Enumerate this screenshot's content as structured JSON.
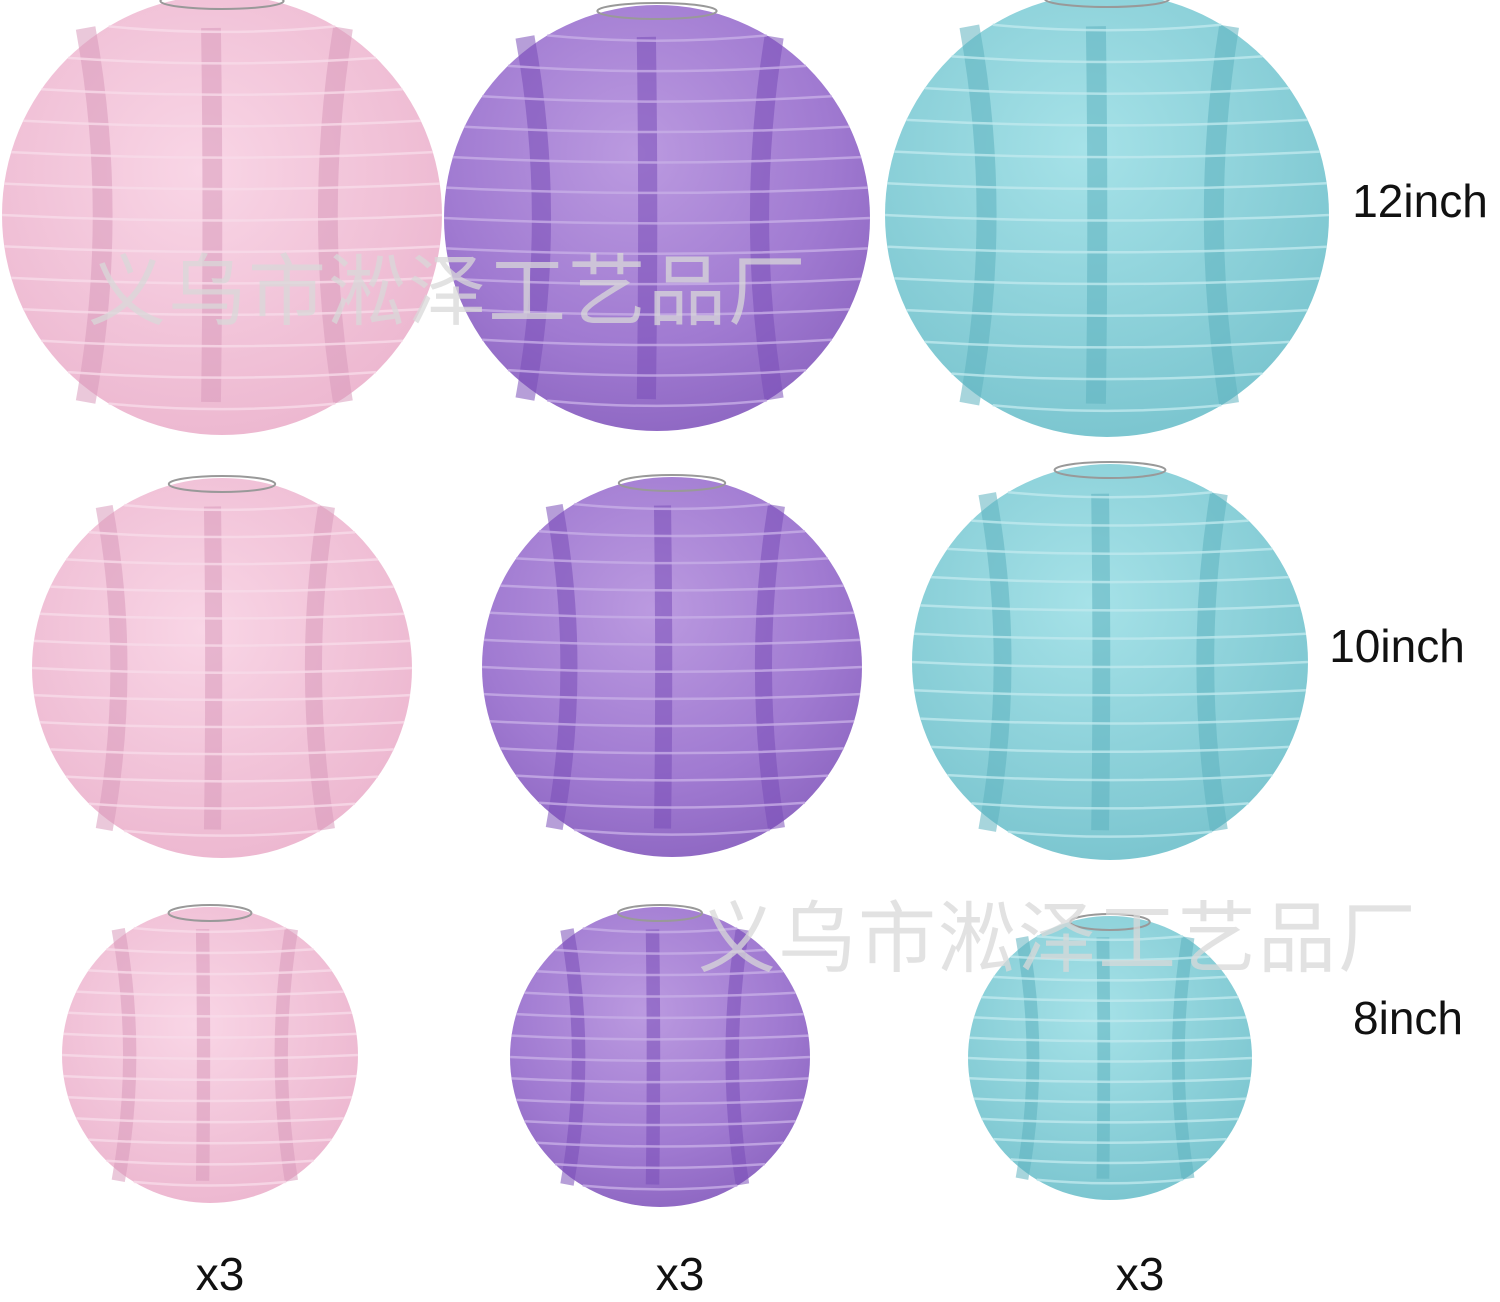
{
  "size_labels": [
    "12inch",
    "10inch",
    "8inch"
  ],
  "quantity_labels": [
    "x3",
    "x3",
    "x3"
  ],
  "watermarks": [
    "义乌市淞泽工艺品厂",
    "义乌市淞泽工艺品厂"
  ]
}
